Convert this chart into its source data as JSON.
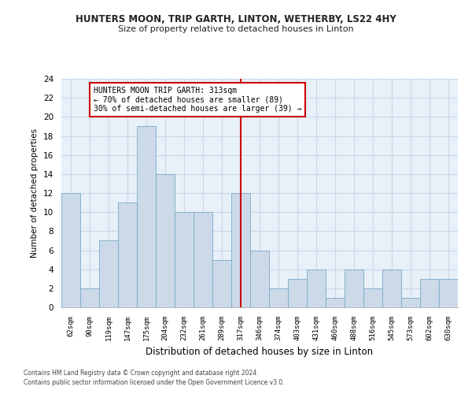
{
  "title": "HUNTERS MOON, TRIP GARTH, LINTON, WETHERBY, LS22 4HY",
  "subtitle": "Size of property relative to detached houses in Linton",
  "xlabel": "Distribution of detached houses by size in Linton",
  "ylabel": "Number of detached properties",
  "categories": [
    "62sqm",
    "90sqm",
    "119sqm",
    "147sqm",
    "175sqm",
    "204sqm",
    "232sqm",
    "261sqm",
    "289sqm",
    "317sqm",
    "346sqm",
    "374sqm",
    "403sqm",
    "431sqm",
    "460sqm",
    "488sqm",
    "516sqm",
    "545sqm",
    "573sqm",
    "602sqm",
    "630sqm"
  ],
  "values": [
    12,
    2,
    7,
    11,
    19,
    14,
    10,
    10,
    5,
    12,
    6,
    2,
    3,
    4,
    1,
    4,
    2,
    4,
    1,
    3,
    3
  ],
  "bar_color": "#ccd9e8",
  "bar_edge_color": "#7aaac8",
  "vline_x": 9,
  "vline_color": "#cc0000",
  "annotation_text": "HUNTERS MOON TRIP GARTH: 313sqm\n← 70% of detached houses are smaller (89)\n30% of semi-detached houses are larger (39) →",
  "annotation_box_color": "#ffffff",
  "annotation_box_edge": "#cc0000",
  "ylim": [
    0,
    24
  ],
  "yticks": [
    0,
    2,
    4,
    6,
    8,
    10,
    12,
    14,
    16,
    18,
    20,
    22,
    24
  ],
  "grid_color": "#c8d8ea",
  "background_color": "#e8f0f8",
  "footer1": "Contains HM Land Registry data © Crown copyright and database right 2024.",
  "footer2": "Contains public sector information licensed under the Open Government Licence v3.0."
}
